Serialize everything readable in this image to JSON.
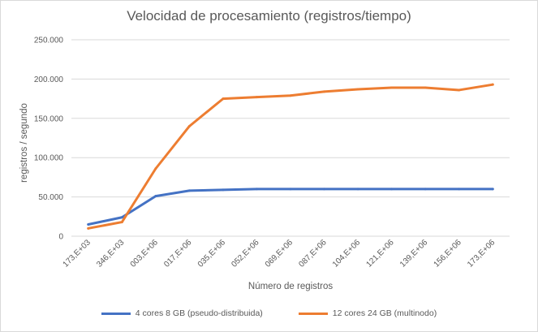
{
  "chart_data": {
    "type": "line",
    "title": "Velocidad de procesamiento (registros/tiempo)",
    "xlabel": "Número de registros",
    "ylabel": "registros / segundo",
    "categories": [
      "173,E+03",
      "346,E+03",
      "003,E+06",
      "017,E+06",
      "035,E+06",
      "052,E+06",
      "069,E+06",
      "087,E+06",
      "104,E+06",
      "121,E+06",
      "139,E+06",
      "156,E+06",
      "173,E+06"
    ],
    "y_ticks": [
      "0",
      "50.000",
      "100.000",
      "150.000",
      "200.000",
      "250.000"
    ],
    "ylim": [
      0,
      250000
    ],
    "grid": true,
    "legend_position": "bottom",
    "series": [
      {
        "name": "4 cores 8 GB (pseudo-distribuida)",
        "color": "#4472c4",
        "values": [
          15000,
          24000,
          51000,
          58000,
          59000,
          60000,
          60000,
          60000,
          60000,
          60000,
          60000,
          60000,
          60000
        ]
      },
      {
        "name": "12 cores 24 GB (multinodo)",
        "color": "#ed7d31",
        "values": [
          10000,
          18000,
          86000,
          140000,
          175000,
          177000,
          179000,
          184000,
          187000,
          189000,
          189000,
          186000,
          193000
        ]
      }
    ]
  }
}
